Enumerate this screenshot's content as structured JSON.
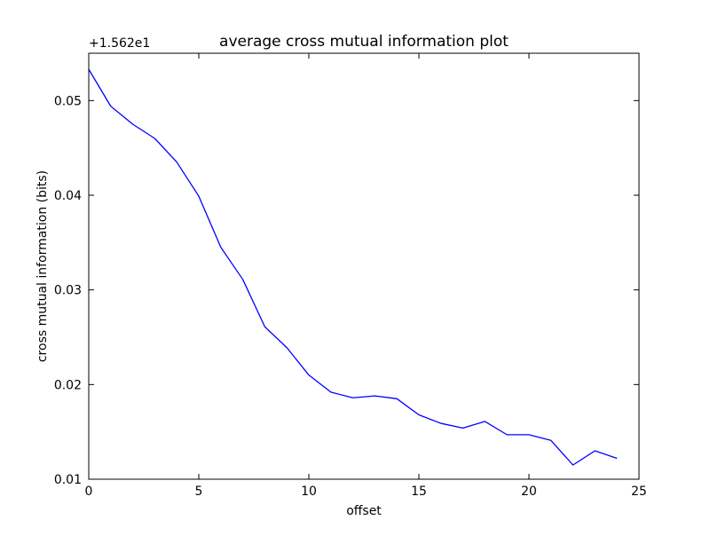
{
  "chart_data": {
    "type": "line",
    "title": "average cross mutual information plot",
    "xlabel": "offset",
    "ylabel": "cross mutual information (bits)",
    "y_offset_label": "+1.562e1",
    "xlim": [
      0,
      25
    ],
    "ylim": [
      0.01,
      0.055
    ],
    "xticks": [
      0,
      5,
      10,
      15,
      20,
      25
    ],
    "xtick_labels": [
      "0",
      "5",
      "10",
      "15",
      "20",
      "25"
    ],
    "yticks": [
      0.01,
      0.02,
      0.03,
      0.04,
      0.05
    ],
    "ytick_labels": [
      "0.01",
      "0.02",
      "0.03",
      "0.04",
      "0.05"
    ],
    "grid": false,
    "series": [
      {
        "color": "#0000ff",
        "x": [
          0,
          1,
          2,
          3,
          4,
          5,
          6,
          7,
          8,
          9,
          10,
          11,
          12,
          13,
          14,
          15,
          16,
          17,
          18,
          19,
          20,
          21,
          22,
          23,
          24
        ],
        "y": [
          0.0533,
          0.0494,
          0.0475,
          0.046,
          0.0435,
          0.0399,
          0.0345,
          0.0311,
          0.0261,
          0.0239,
          0.021,
          0.0192,
          0.0186,
          0.0188,
          0.0185,
          0.0168,
          0.0159,
          0.0154,
          0.0161,
          0.0147,
          0.0147,
          0.0141,
          0.0115,
          0.013,
          0.0122
        ]
      }
    ]
  }
}
